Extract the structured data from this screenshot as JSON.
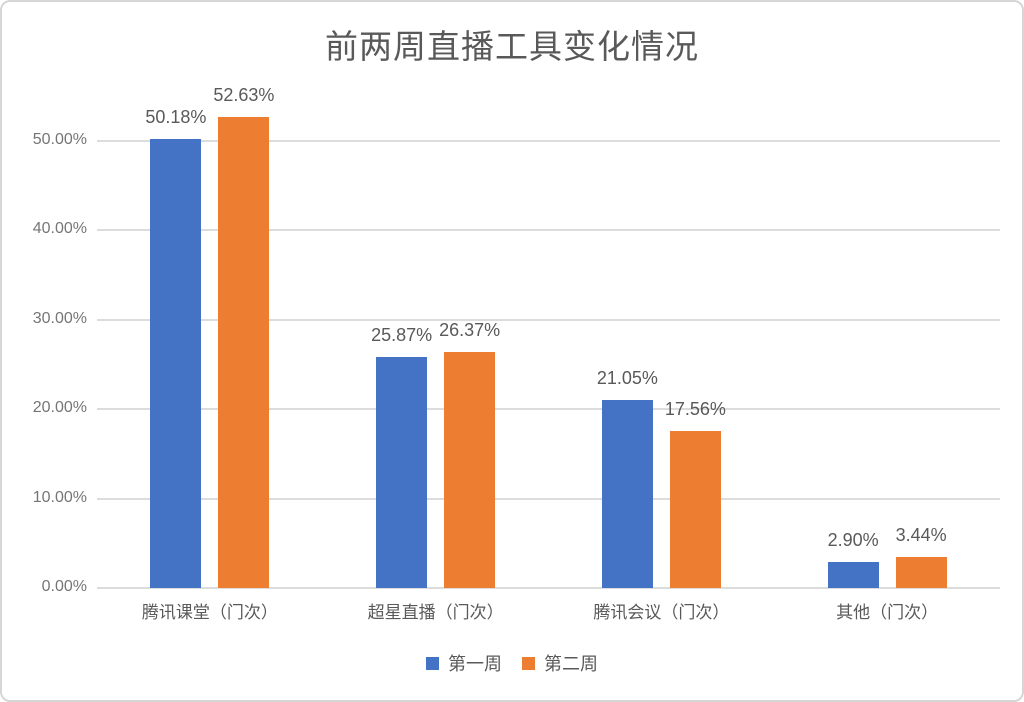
{
  "chart_data": {
    "type": "bar",
    "title": "前两周直播工具变化情况",
    "categories": [
      "腾讯课堂（门次）",
      "超星直播（门次）",
      "腾讯会议（门次）",
      "其他（门次）"
    ],
    "series": [
      {
        "name": "第一周",
        "color": "#4472C4",
        "values": [
          50.18,
          25.87,
          21.05,
          2.9
        ],
        "labels": [
          "50.18%",
          "25.87%",
          "21.05%",
          "2.90%"
        ]
      },
      {
        "name": "第二周",
        "color": "#ED7D31",
        "values": [
          52.63,
          26.37,
          17.56,
          3.44
        ],
        "labels": [
          "52.63%",
          "26.37%",
          "17.56%",
          "3.44%"
        ]
      }
    ],
    "y_axis": {
      "tick_labels": [
        "0.00%",
        "10.00%",
        "20.00%",
        "30.00%",
        "40.00%",
        "50.00%"
      ],
      "tick_values": [
        0,
        10,
        20,
        30,
        40,
        50
      ],
      "range": [
        0,
        55
      ]
    },
    "grid": true,
    "legend_position": "bottom",
    "colors": {
      "grid": "#DCDCDC",
      "axis_text": "#757575",
      "data_label_text": "#595959",
      "title_text": "#595959"
    }
  }
}
